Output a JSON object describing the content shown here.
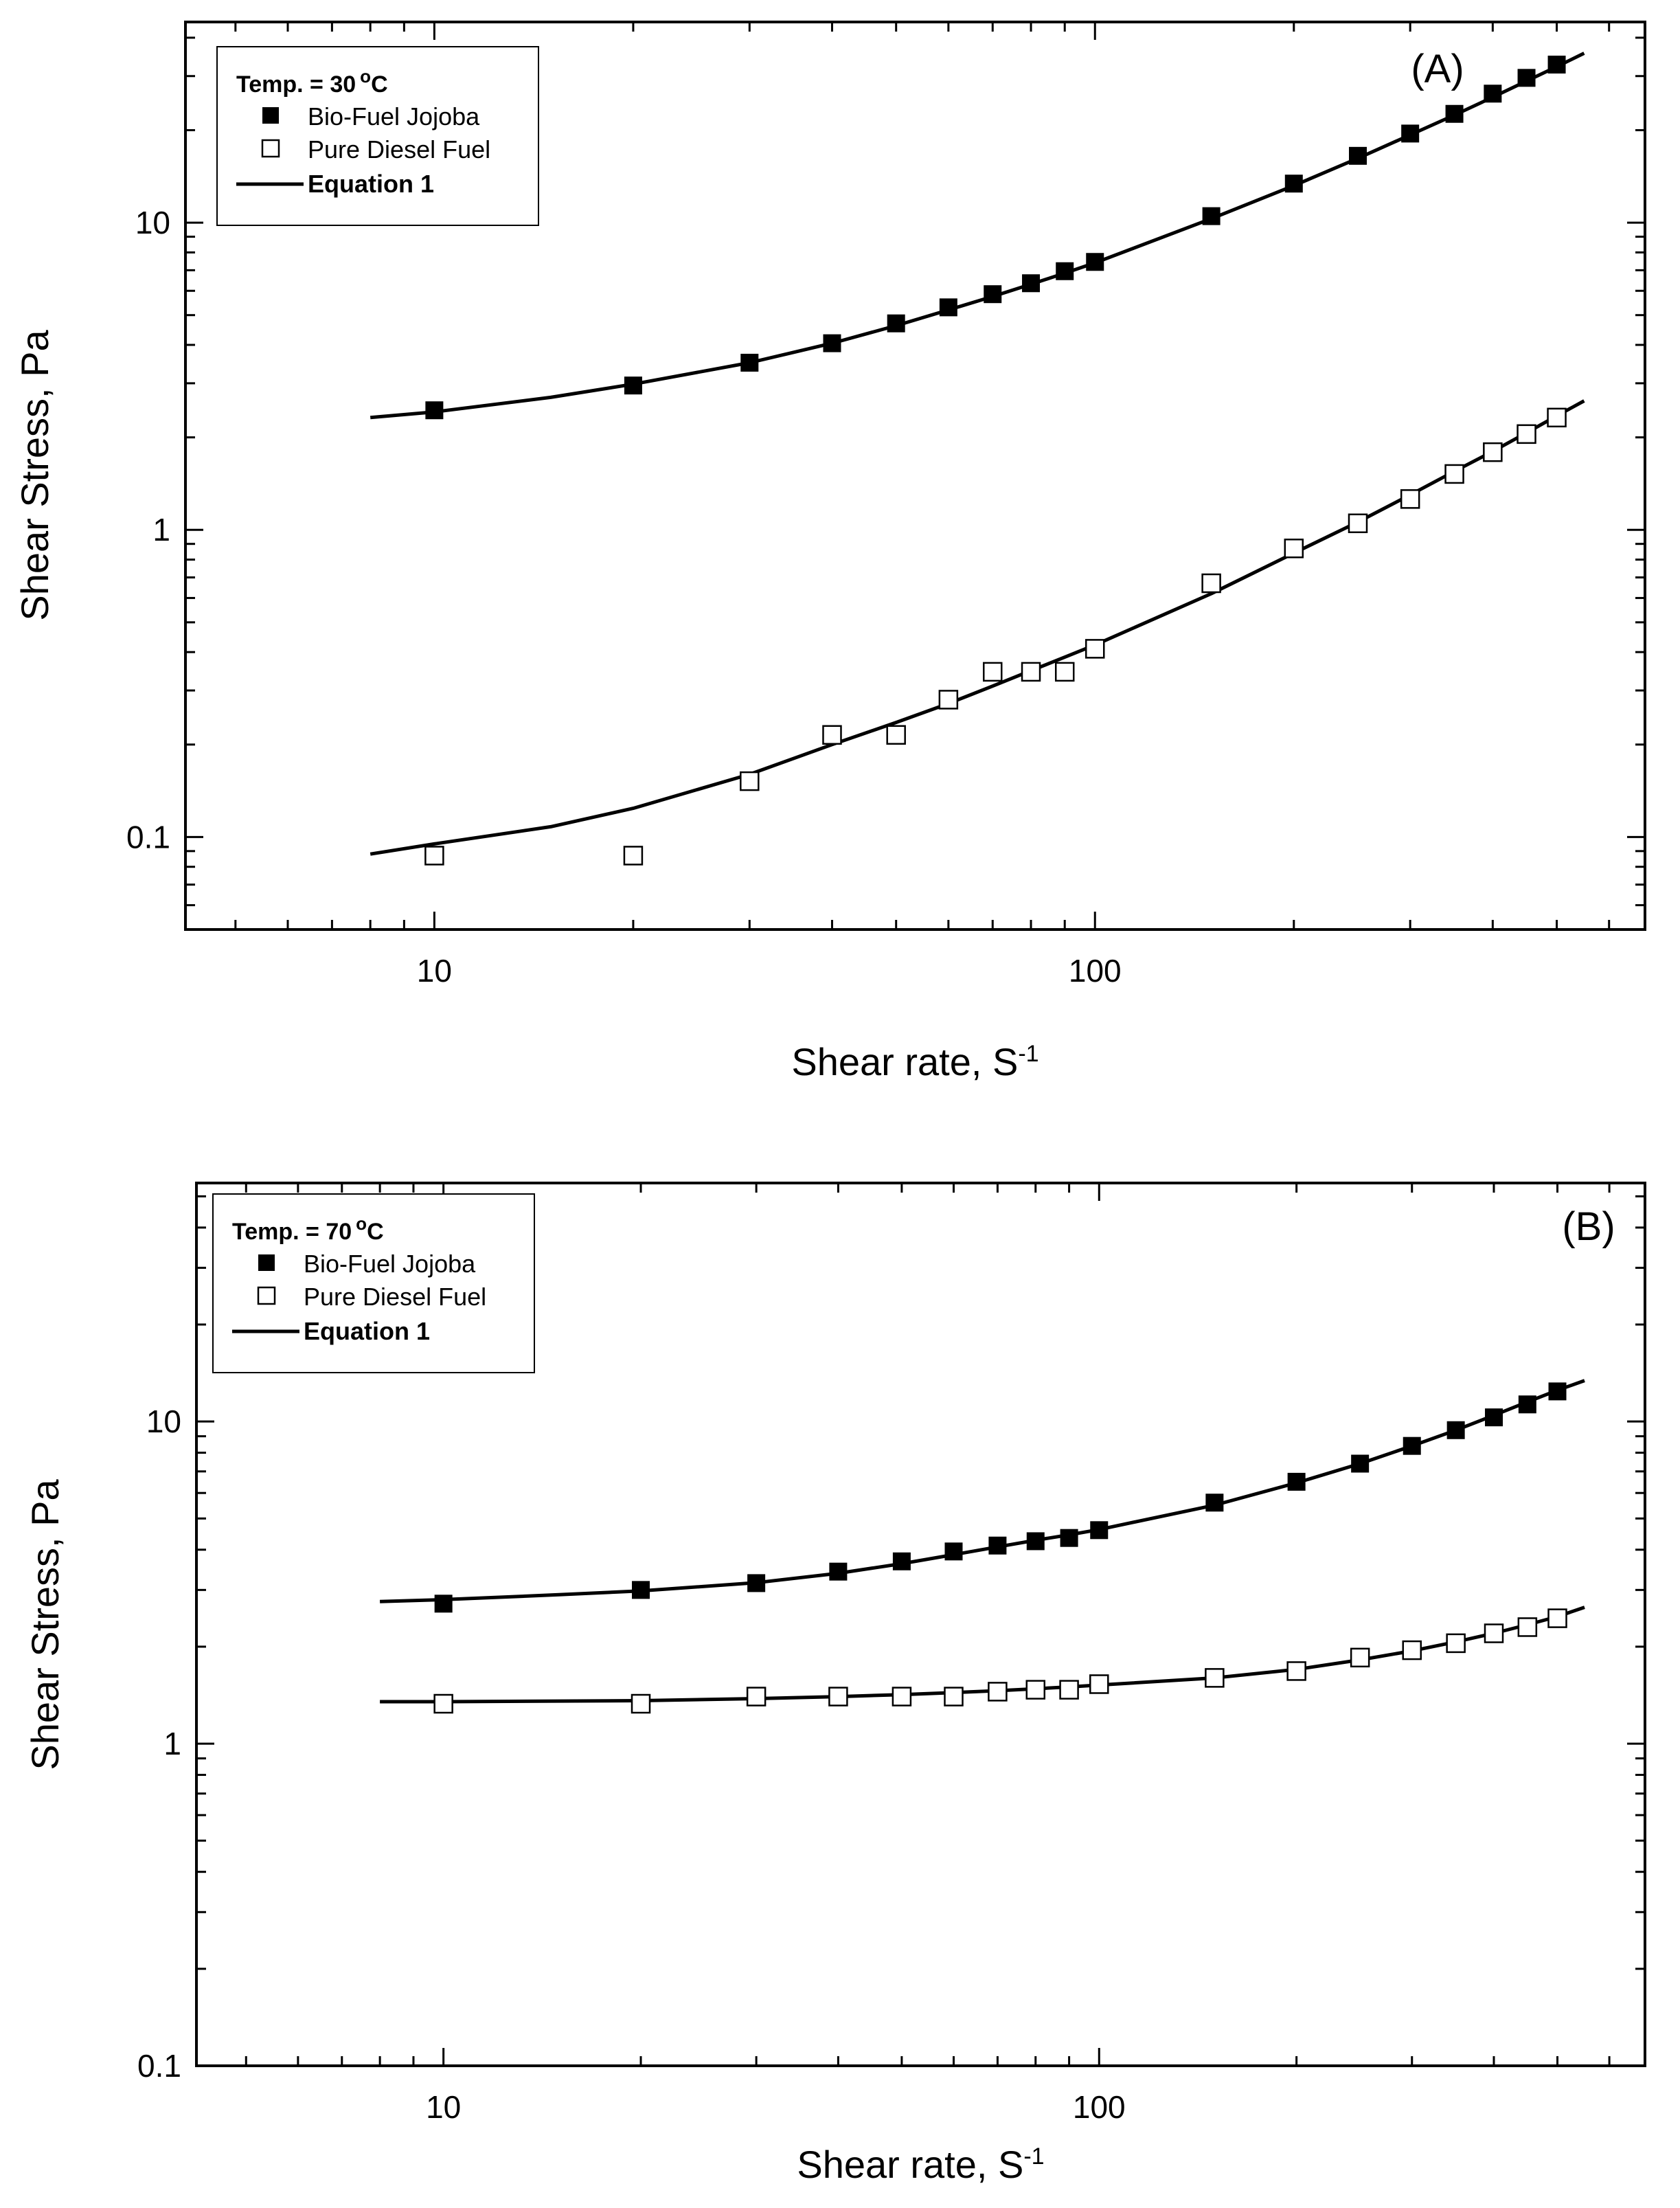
{
  "chart_data": [
    {
      "type": "scatter",
      "panel_label": "(A)",
      "xlabel": "Shear rate, S",
      "xlabel_sup": "-1",
      "ylabel": "Shear Stress, Pa",
      "xscale": "log",
      "yscale": "log",
      "xlim": [
        4.2,
        680
      ],
      "ylim": [
        0.05,
        45
      ],
      "x_ticks": [
        10,
        100
      ],
      "x_tick_labels": [
        "10",
        "100"
      ],
      "y_ticks": [
        0.1,
        1,
        10
      ],
      "y_tick_labels": [
        "0.1",
        "1",
        "10"
      ],
      "legend": {
        "title": "Temp. = 30",
        "title_unit": "C",
        "entries": [
          "Bio-Fuel Jojoba",
          "Pure Diesel Fuel",
          "Equation 1"
        ],
        "position": "top-left"
      },
      "series": [
        {
          "name": "Bio-Fuel Jojoba",
          "marker": "filled-square",
          "x": [
            10,
            20,
            30,
            40,
            50,
            60,
            70,
            80,
            90,
            100,
            150,
            200,
            250,
            300,
            350,
            400,
            450,
            500
          ],
          "y": [
            2.45,
            2.95,
            3.5,
            4.05,
            4.7,
            5.3,
            5.85,
            6.35,
            6.95,
            7.45,
            10.5,
            13.4,
            16.5,
            19.5,
            22.6,
            26.3,
            29.6,
            32.7
          ]
        },
        {
          "name": "Pure Diesel Fuel",
          "marker": "open-square",
          "x": [
            10,
            20,
            30,
            40,
            50,
            60,
            70,
            80,
            90,
            100,
            150,
            200,
            250,
            300,
            350,
            400,
            450,
            500
          ],
          "y": [
            0.087,
            0.087,
            0.152,
            0.215,
            0.215,
            0.28,
            0.345,
            0.345,
            0.345,
            0.41,
            0.67,
            0.87,
            1.05,
            1.26,
            1.52,
            1.79,
            2.05,
            2.32
          ]
        }
      ],
      "fit_lines": [
        {
          "name": "Equation 1",
          "x": [
            8,
            10,
            15,
            20,
            30,
            40,
            50,
            60,
            70,
            80,
            90,
            100,
            150,
            200,
            250,
            300,
            350,
            400,
            450,
            500,
            550
          ],
          "y": [
            2.32,
            2.42,
            2.7,
            2.98,
            3.5,
            4.05,
            4.62,
            5.2,
            5.75,
            6.3,
            6.85,
            7.4,
            10.3,
            13.2,
            16.2,
            19.3,
            22.4,
            25.6,
            28.9,
            32.2,
            35.6
          ]
        },
        {
          "name": "Equation 1",
          "x": [
            8,
            10,
            15,
            20,
            30,
            40,
            50,
            60,
            70,
            80,
            90,
            100,
            150,
            200,
            250,
            300,
            350,
            400,
            450,
            500,
            550
          ],
          "y": [
            0.088,
            0.095,
            0.108,
            0.124,
            0.16,
            0.2,
            0.236,
            0.272,
            0.31,
            0.348,
            0.385,
            0.422,
            0.62,
            0.84,
            1.06,
            1.3,
            1.55,
            1.8,
            2.07,
            2.35,
            2.63
          ]
        }
      ]
    },
    {
      "type": "scatter",
      "panel_label": "(B)",
      "xlabel": "Shear rate, S",
      "xlabel_sup": "-1",
      "ylabel": "Shear Stress, Pa",
      "xscale": "log",
      "yscale": "log",
      "xlim": [
        4.2,
        680
      ],
      "ylim": [
        0.1,
        55
      ],
      "x_ticks": [
        10,
        100
      ],
      "x_tick_labels": [
        "10",
        "100"
      ],
      "y_ticks": [
        0.1,
        1,
        10
      ],
      "y_tick_labels": [
        "0.1",
        "1",
        "10"
      ],
      "legend": {
        "title": "Temp. = 70",
        "title_unit": "C",
        "entries": [
          "Bio-Fuel Jojoba",
          "Pure Diesel Fuel",
          "Equation 1"
        ],
        "position": "top-left"
      },
      "series": [
        {
          "name": "Bio-Fuel Jojoba",
          "marker": "filled-square",
          "x": [
            10,
            20,
            30,
            40,
            50,
            60,
            70,
            80,
            90,
            100,
            150,
            200,
            250,
            300,
            350,
            400,
            450,
            500
          ],
          "y": [
            2.72,
            3.0,
            3.15,
            3.42,
            3.68,
            3.95,
            4.12,
            4.25,
            4.35,
            4.6,
            5.6,
            6.5,
            7.4,
            8.4,
            9.4,
            10.3,
            11.3,
            12.4
          ]
        },
        {
          "name": "Pure Diesel Fuel",
          "marker": "open-square",
          "x": [
            10,
            20,
            30,
            40,
            50,
            60,
            70,
            80,
            90,
            100,
            150,
            200,
            250,
            300,
            350,
            400,
            450,
            500
          ],
          "y": [
            1.33,
            1.33,
            1.4,
            1.4,
            1.4,
            1.4,
            1.45,
            1.47,
            1.47,
            1.53,
            1.6,
            1.68,
            1.85,
            1.95,
            2.05,
            2.2,
            2.3,
            2.45
          ]
        }
      ],
      "fit_lines": [
        {
          "name": "Equation 1",
          "x": [
            8,
            10,
            15,
            20,
            30,
            40,
            50,
            60,
            70,
            80,
            90,
            100,
            150,
            200,
            250,
            300,
            350,
            400,
            450,
            500,
            550
          ],
          "y": [
            2.76,
            2.8,
            2.9,
            2.98,
            3.16,
            3.38,
            3.62,
            3.86,
            4.08,
            4.28,
            4.45,
            4.62,
            5.5,
            6.45,
            7.4,
            8.4,
            9.4,
            10.45,
            11.5,
            12.5,
            13.4
          ]
        },
        {
          "name": "Equation 1",
          "x": [
            8,
            10,
            20,
            30,
            40,
            50,
            60,
            70,
            80,
            90,
            100,
            150,
            200,
            250,
            300,
            350,
            400,
            450,
            500,
            550
          ],
          "y": [
            1.35,
            1.35,
            1.36,
            1.38,
            1.4,
            1.42,
            1.44,
            1.46,
            1.48,
            1.5,
            1.52,
            1.6,
            1.7,
            1.82,
            1.94,
            2.07,
            2.2,
            2.34,
            2.48,
            2.65
          ]
        }
      ]
    }
  ]
}
